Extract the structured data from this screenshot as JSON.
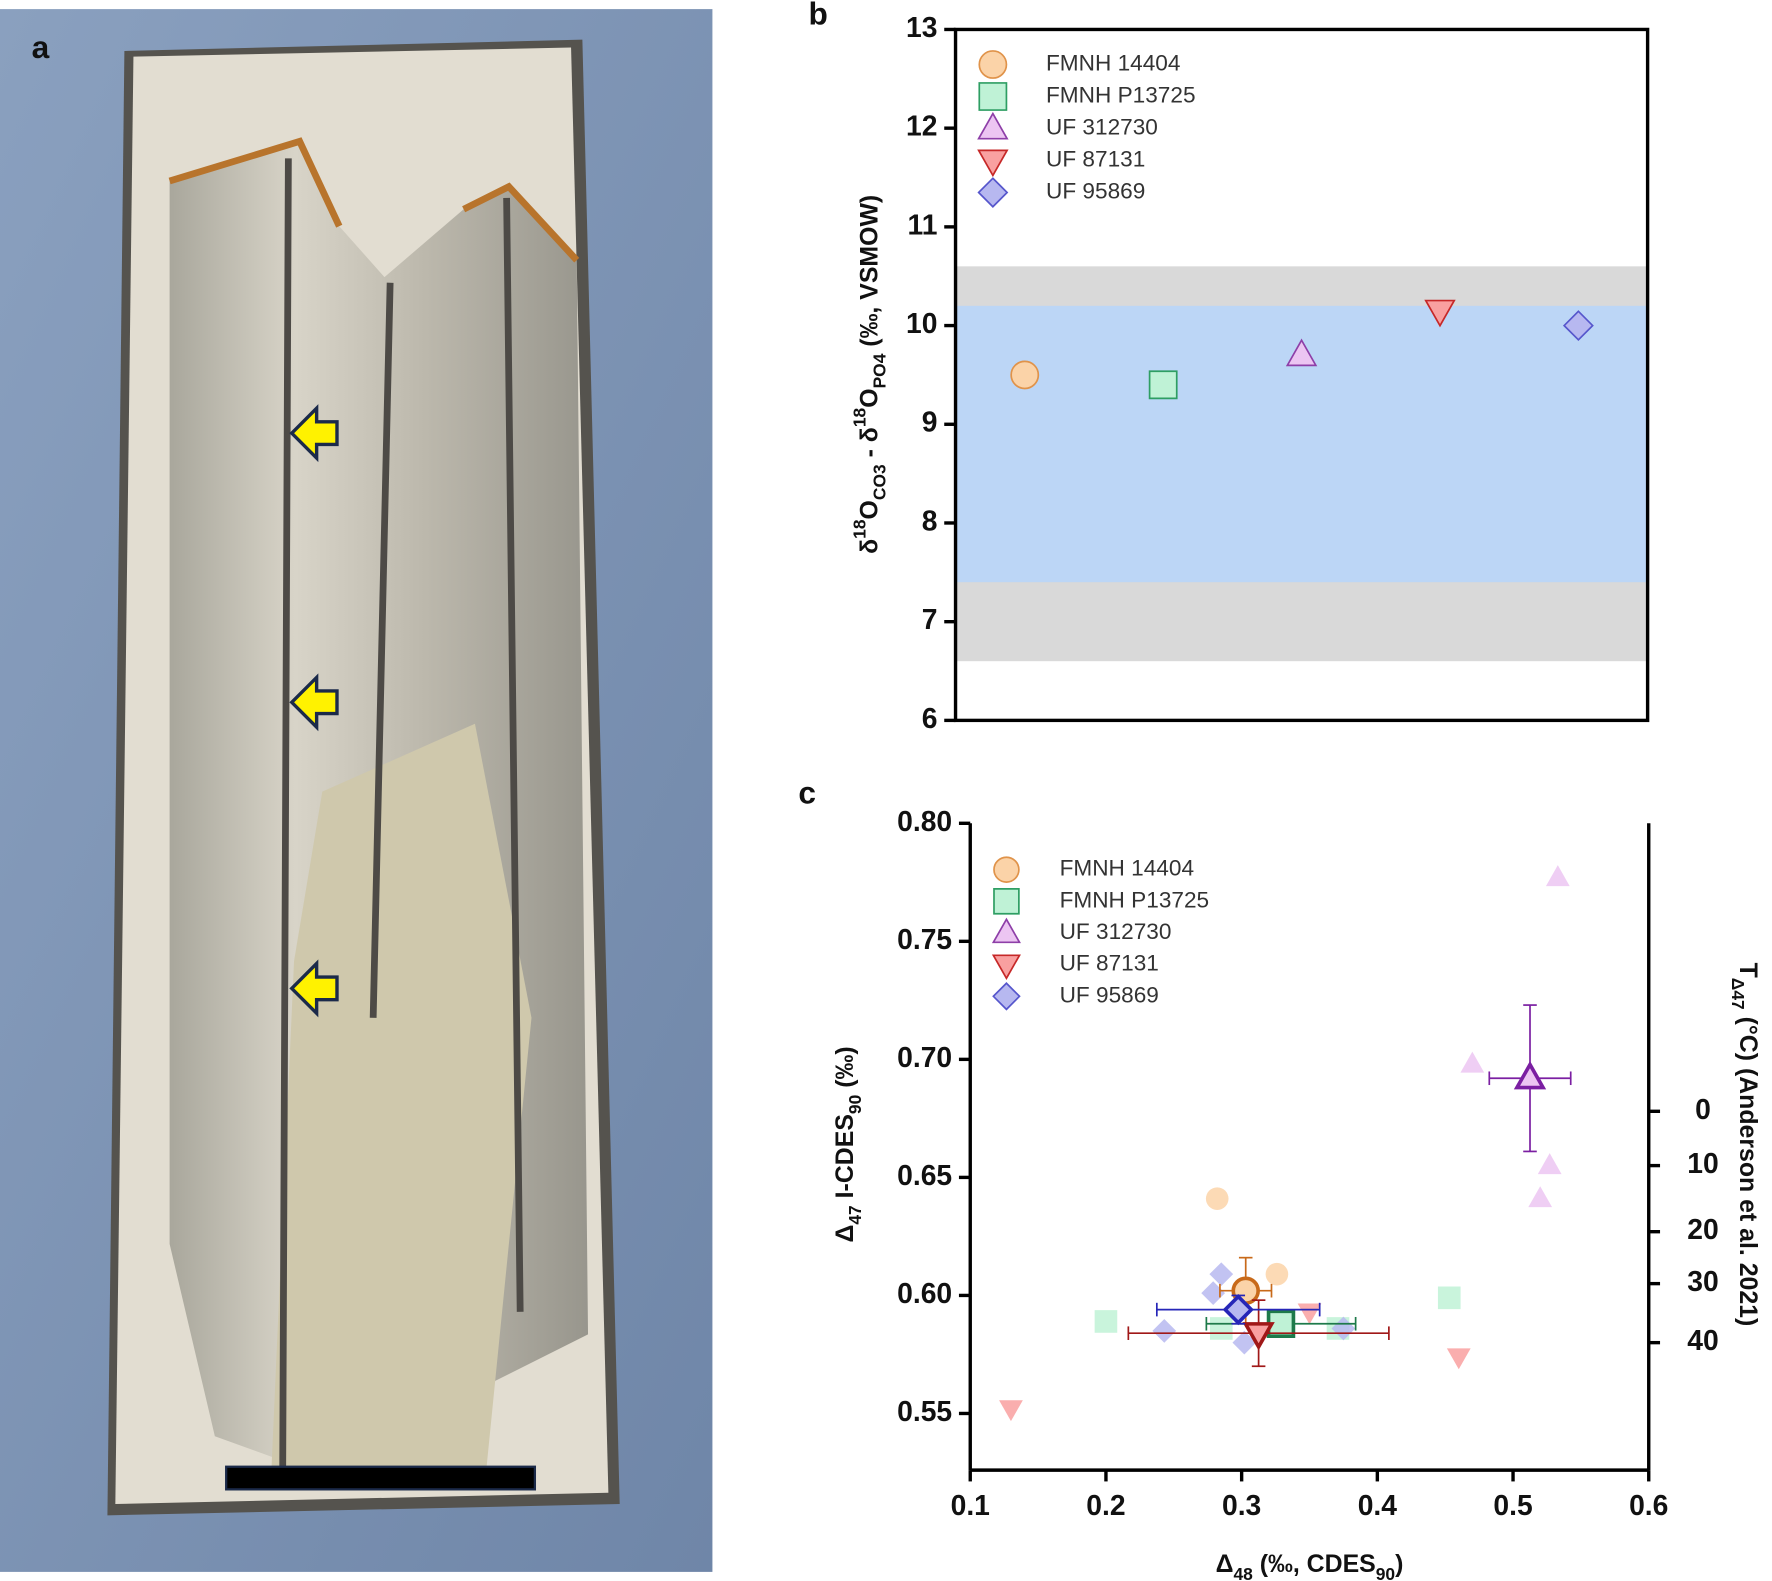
{
  "photo_panel": {
    "panel_label": "a"
  },
  "chart_data": [
    {
      "type": "scatter",
      "panel_label": "b",
      "ylabel_parts": [
        {
          "text": "δ"
        },
        {
          "text": "18",
          "shift": "super"
        },
        {
          "text": "O"
        },
        {
          "text": "CO3",
          "shift": "sub"
        },
        {
          "text": " - δ"
        },
        {
          "text": "18",
          "shift": "super"
        },
        {
          "text": "O"
        },
        {
          "text": "PO4",
          "shift": "sub"
        },
        {
          "text": " (‰, VSMOW)"
        }
      ],
      "ylim": [
        6,
        13
      ],
      "yticks": [
        6,
        7,
        8,
        9,
        10,
        11,
        12,
        13
      ],
      "bands": [
        {
          "range": [
            6.6,
            10.6
          ],
          "color": "#d9d9d9"
        },
        {
          "range": [
            7.4,
            10.2
          ],
          "color": "#bcd6f6"
        }
      ],
      "categories": [
        null,
        null,
        null,
        null,
        null
      ],
      "series": [
        {
          "name": "FMNH 14404",
          "marker": "circle",
          "color": "#fbd3a8",
          "edge_color": "#e0934a",
          "values": [
            9.5,
            null,
            null,
            null,
            null
          ]
        },
        {
          "name": "FMNH P13725",
          "marker": "square",
          "color": "#bff2d6",
          "edge_color": "#2e9e63",
          "values": [
            null,
            9.4,
            null,
            null,
            null
          ]
        },
        {
          "name": "UF 312730",
          "marker": "triangle-up",
          "color": "#ecc5f2",
          "edge_color": "#8e3fa8",
          "values": [
            null,
            null,
            9.7,
            null,
            null
          ]
        },
        {
          "name": "UF 87131",
          "marker": "triangle-down",
          "color": "#f9a0a0",
          "edge_color": "#c62828",
          "values": [
            null,
            null,
            null,
            10.15,
            null
          ]
        },
        {
          "name": "UF 95869",
          "marker": "diamond",
          "color": "#b7b8f0",
          "edge_color": "#5656cc",
          "values": [
            null,
            null,
            null,
            null,
            10.0
          ]
        }
      ]
    },
    {
      "type": "scatter",
      "panel_label": "c",
      "xlabel_parts": [
        {
          "text": "Δ"
        },
        {
          "text": "48",
          "shift": "sub"
        },
        {
          "text": " (‰, CDES"
        },
        {
          "text": "90",
          "shift": "sub"
        },
        {
          "text": ")"
        }
      ],
      "ylabel_parts": [
        {
          "text": "Δ"
        },
        {
          "text": "47",
          "shift": "sub"
        },
        {
          "text": " I-CDES"
        },
        {
          "text": "90",
          "shift": "sub"
        },
        {
          "text": " (‰)"
        }
      ],
      "y2label_parts": [
        {
          "text": "T"
        },
        {
          "text": "Δ47",
          "shift": "sub"
        },
        {
          "text": " (°C)  (Anderson et al. 2021)"
        }
      ],
      "xlim": [
        0.1,
        0.6
      ],
      "xticks": [
        0.1,
        0.2,
        0.3,
        0.4,
        0.5,
        0.6
      ],
      "ylim": [
        0.526,
        0.8
      ],
      "yticks": [
        0.55,
        {
          "value": 0.6,
          "label": "0.60"
        },
        0.65,
        {
          "value": 0.7,
          "label": "0.70"
        },
        0.75,
        {
          "value": 0.8,
          "label": "0.80"
        }
      ],
      "y2ticks": [
        {
          "value": 0.678,
          "label": "0"
        },
        {
          "value": 0.655,
          "label": "10"
        },
        {
          "value": 0.627,
          "label": "20"
        },
        {
          "value": 0.605,
          "label": "30"
        },
        {
          "value": 0.58,
          "label": "40"
        }
      ],
      "series": [
        {
          "name": "FMNH 14404",
          "marker": "circle",
          "color": "#fbd3a8",
          "edge_color": "#e0934a",
          "mean_color": "#c86a1a",
          "x": [
            0.282,
            0.302,
            0.326
          ],
          "values": [
            0.641,
            0.603,
            0.609
          ],
          "mean": {
            "x": 0.303,
            "y": 0.602,
            "xerr": 0.019,
            "yerr": 0.014
          }
        },
        {
          "name": "FMNH P13725",
          "marker": "square",
          "color": "#bff2d6",
          "edge_color": "#2e9e63",
          "mean_color": "#1e7a4a",
          "x": [
            0.2,
            0.285,
            0.453,
            0.371
          ],
          "values": [
            0.589,
            0.586,
            0.599,
            0.586
          ],
          "mean": {
            "x": 0.329,
            "y": 0.588,
            "xerr": 0.055,
            "yerr": 0.005
          }
        },
        {
          "name": "UF 312730",
          "marker": "triangle-up",
          "color": "#ecc5f2",
          "edge_color": "#8e3fa8",
          "mean_color": "#7b1fa2",
          "x": [
            0.533,
            0.47,
            0.527,
            0.52
          ],
          "values": [
            0.777,
            0.698,
            0.655,
            0.641
          ],
          "mean": {
            "x": 0.5125,
            "y": 0.692,
            "xerr": 0.03,
            "yerr": 0.031
          }
        },
        {
          "name": "UF 87131",
          "marker": "triangle-down",
          "color": "#f9a0a0",
          "edge_color": "#c62828",
          "mean_color": "#a01818",
          "x": [
            0.13,
            0.46,
            0.35
          ],
          "values": [
            0.552,
            0.574,
            0.593
          ],
          "mean": {
            "x": 0.3125,
            "y": 0.584,
            "xerr": 0.096,
            "yerr": 0.014
          }
        },
        {
          "name": "UF 95869",
          "marker": "diamond",
          "color": "#b7b8f0",
          "edge_color": "#5656cc",
          "mean_color": "#2626b8",
          "x": [
            0.279,
            0.285,
            0.243,
            0.302,
            0.375
          ],
          "values": [
            0.601,
            0.609,
            0.585,
            0.58,
            0.586
          ],
          "mean": {
            "x": 0.2975,
            "y": 0.594,
            "xerr": 0.06,
            "yerr": 0.006
          }
        }
      ]
    }
  ]
}
